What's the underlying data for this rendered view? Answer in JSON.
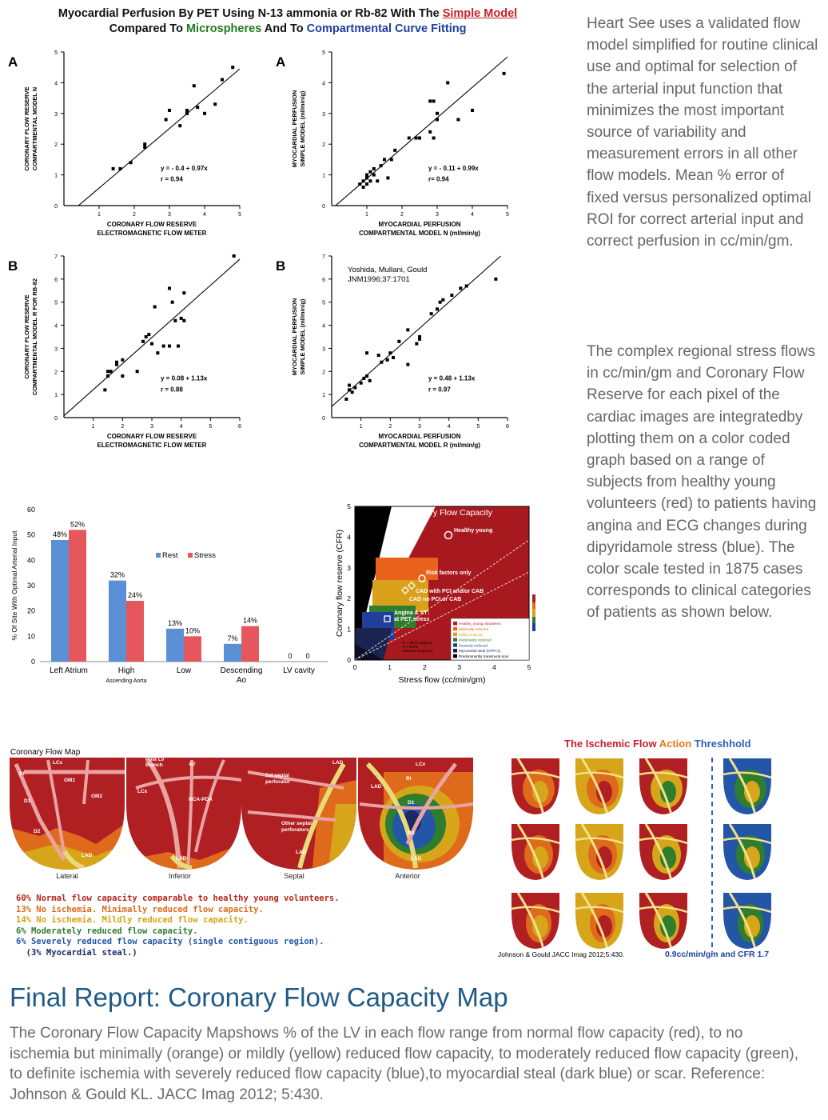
{
  "figure": {
    "title_pre": "Myocardial Perfusion By PET Using N-13 ammonia or Rb-82 With The ",
    "title_simple": "Simple Model",
    "title_pre2": "Compared To ",
    "title_micro": "Microspheres",
    "title_mid": " And To ",
    "title_comp": "Compartmental Curve Fitting"
  },
  "side_text": {
    "para1": "Heart See uses a validated flow model simplified for routine clinical use and optimal for selection of the arterial input function that minimizes the most important source of variability and measurement errors in all other flow models. Mean % error of fixed versus personalized optimal ROI for correct arterial input and correct perfusion in cc/min/gm.",
    "para2": "The complex regional stress flows in cc/min/gm and Coronary Flow Reserve for each pixel of the cardiac images are integratedby plotting them on a color coded graph based on a range of subjects from healthy young volunteers (red) to patients having angina and ECG changes during dipyridamole stress (blue).  The color scale tested in 1875 cases corresponds to clinical categories of patients as shown below."
  },
  "chart_data": [
    {
      "type": "scatter",
      "panel_label": "A",
      "xlabel": "CORONARY FLOW RESERVE\nELECTROMAGNETIC FLOW METER",
      "ylabel": "CORONARY FLOW RESERVE\nCOMPARTMENTAL MODEL N",
      "xlim": [
        0,
        5
      ],
      "ylim": [
        0,
        5
      ],
      "xticks": [
        1,
        2,
        3,
        4,
        5
      ],
      "yticks": [
        1,
        2,
        3,
        4,
        5
      ],
      "equation": "y =  - 0.4 + 0.97x",
      "r": "r = 0.94",
      "fit": {
        "intercept": -0.4,
        "slope": 0.97
      },
      "points": [
        [
          1.4,
          1.2
        ],
        [
          1.6,
          1.2
        ],
        [
          1.9,
          1.4
        ],
        [
          2.3,
          1.9
        ],
        [
          2.3,
          2.0
        ],
        [
          2.9,
          2.8
        ],
        [
          3.0,
          3.1
        ],
        [
          3.3,
          2.6
        ],
        [
          3.5,
          3.1
        ],
        [
          3.5,
          3.0
        ],
        [
          3.7,
          3.9
        ],
        [
          3.8,
          3.2
        ],
        [
          4.0,
          3.0
        ],
        [
          4.3,
          3.3
        ],
        [
          4.5,
          4.1
        ],
        [
          4.8,
          4.5
        ]
      ]
    },
    {
      "type": "scatter",
      "panel_label": "A",
      "xlabel": "MYOCARDIAL PERFUSION\nCOMPARTMENTAL MODEL N  (ml/min/g)",
      "ylabel": "MYOCARDIAL PERFUSION\nSIMPLE MODEL  (ml/min/g)",
      "xlim": [
        0,
        5
      ],
      "ylim": [
        0,
        5
      ],
      "xticks": [
        1,
        2,
        3,
        4,
        5
      ],
      "yticks": [
        1,
        2,
        3,
        4,
        5
      ],
      "equation": "y =  - 0.11 + 0.99x",
      "r": "r= 0.94",
      "fit": {
        "intercept": -0.11,
        "slope": 0.99
      },
      "points": [
        [
          0.8,
          0.7
        ],
        [
          0.9,
          0.6
        ],
        [
          0.9,
          0.8
        ],
        [
          1.0,
          0.7
        ],
        [
          1.0,
          0.9
        ],
        [
          1.0,
          1.0
        ],
        [
          1.1,
          0.8
        ],
        [
          1.1,
          1.1
        ],
        [
          1.2,
          1.0
        ],
        [
          1.2,
          1.2
        ],
        [
          1.3,
          0.8
        ],
        [
          1.4,
          1.3
        ],
        [
          1.5,
          1.5
        ],
        [
          1.6,
          0.9
        ],
        [
          1.7,
          1.5
        ],
        [
          1.8,
          1.8
        ],
        [
          2.2,
          2.2
        ],
        [
          2.4,
          2.2
        ],
        [
          2.5,
          2.2
        ],
        [
          2.8,
          2.4
        ],
        [
          2.8,
          3.4
        ],
        [
          2.9,
          2.2
        ],
        [
          2.9,
          3.4
        ],
        [
          3.0,
          2.8
        ],
        [
          3.0,
          3.0
        ],
        [
          3.3,
          4.0
        ],
        [
          3.6,
          2.8
        ],
        [
          4.0,
          3.1
        ],
        [
          4.9,
          4.3
        ]
      ]
    },
    {
      "type": "scatter",
      "panel_label": "B",
      "xlabel": "CORONARY FLOW RESERVE\nELECTROMAGNETIC FLOW METER",
      "ylabel": "CORONARY FLOW RESERVE\nCOMPARTMENTAL MODEL R FOR RB-82",
      "xlim": [
        0,
        6
      ],
      "ylim": [
        0,
        7
      ],
      "xticks": [
        1,
        2,
        3,
        4,
        5,
        6
      ],
      "yticks": [
        1,
        2,
        3,
        4,
        5,
        6,
        7
      ],
      "equation": "y = 0.08 + 1.13x",
      "r": "r = 0.88",
      "fit": {
        "intercept": 0.08,
        "slope": 1.13
      },
      "points": [
        [
          1.4,
          1.2
        ],
        [
          1.5,
          1.8
        ],
        [
          1.5,
          2.0
        ],
        [
          1.6,
          2.0
        ],
        [
          1.8,
          2.3
        ],
        [
          1.8,
          2.4
        ],
        [
          2.0,
          2.5
        ],
        [
          2.0,
          1.8
        ],
        [
          2.5,
          2.0
        ],
        [
          2.7,
          3.3
        ],
        [
          2.8,
          3.5
        ],
        [
          2.9,
          3.6
        ],
        [
          3.0,
          3.2
        ],
        [
          3.1,
          4.8
        ],
        [
          3.2,
          2.8
        ],
        [
          3.4,
          3.1
        ],
        [
          3.6,
          5.6
        ],
        [
          3.6,
          3.1
        ],
        [
          3.7,
          5.0
        ],
        [
          3.8,
          4.2
        ],
        [
          3.9,
          3.1
        ],
        [
          4.0,
          4.3
        ],
        [
          4.1,
          5.4
        ],
        [
          4.1,
          4.2
        ],
        [
          5.8,
          7.0
        ]
      ]
    },
    {
      "type": "scatter",
      "panel_label": "B",
      "annotation": "Yoshida, Mullani, Gould\nJNM1996;37:1701",
      "xlabel": "MYOCARDIAL PERFUSION\nCOMPARTMENTAL MODEL R  (ml/min/g)",
      "ylabel": "MYOCARDIAL PERFUSION\nSIMPLE MODEL  (ml/min/g)",
      "xlim": [
        0,
        6
      ],
      "ylim": [
        0,
        7
      ],
      "xticks": [
        1,
        2,
        3,
        4,
        5,
        6
      ],
      "yticks": [
        1,
        2,
        3,
        4,
        5,
        6,
        7
      ],
      "equation": "y = 0.48 + 1.13x",
      "r": "r = 0.97",
      "fit": {
        "intercept": 0.48,
        "slope": 1.13
      },
      "points": [
        [
          0.5,
          0.8
        ],
        [
          0.6,
          1.2
        ],
        [
          0.6,
          1.4
        ],
        [
          0.7,
          1.1
        ],
        [
          0.8,
          1.3
        ],
        [
          1.0,
          1.5
        ],
        [
          1.1,
          1.7
        ],
        [
          1.2,
          1.8
        ],
        [
          1.2,
          2.8
        ],
        [
          1.3,
          1.6
        ],
        [
          1.6,
          2.7
        ],
        [
          1.7,
          2.4
        ],
        [
          1.9,
          2.5
        ],
        [
          2.0,
          2.8
        ],
        [
          2.1,
          2.6
        ],
        [
          2.3,
          3.3
        ],
        [
          2.6,
          3.8
        ],
        [
          2.6,
          2.3
        ],
        [
          2.9,
          3.2
        ],
        [
          3.0,
          3.4
        ],
        [
          3.0,
          3.5
        ],
        [
          3.4,
          4.5
        ],
        [
          3.6,
          4.7
        ],
        [
          3.7,
          5.0
        ],
        [
          3.8,
          5.1
        ],
        [
          4.1,
          5.3
        ],
        [
          4.4,
          5.6
        ],
        [
          4.6,
          5.7
        ],
        [
          5.6,
          6.0
        ]
      ]
    },
    {
      "type": "bar",
      "ylabel": "% Of Site With Optimal Arterial Input",
      "ylim": [
        0,
        60
      ],
      "yticks": [
        0,
        10,
        20,
        30,
        40,
        50,
        60
      ],
      "categories": [
        "Left Atrium",
        "High",
        "Low",
        "Descending",
        "LV cavity"
      ],
      "category_sublabels": [
        "",
        "Ascending Aorta",
        "",
        "Ao",
        ""
      ],
      "series": [
        {
          "name": "Rest",
          "color": "#5b8fd6",
          "values": [
            48,
            32,
            13,
            7,
            0
          ]
        },
        {
          "name": "Stress",
          "color": "#e5575c",
          "values": [
            52,
            24,
            10,
            14,
            0
          ]
        }
      ],
      "value_labels": [
        [
          "48%",
          "32%",
          "13%",
          "7%",
          "0"
        ],
        [
          "52%",
          "24%",
          "10%",
          "14%",
          "0"
        ]
      ],
      "legend_position": "top-right"
    },
    {
      "type": "area",
      "title": "Coronary Flow Capacity",
      "xlabel": "Stress flow (cc/min/gm)",
      "ylabel": "Coronary flow reserve (CFR)",
      "xlim": [
        0,
        5
      ],
      "ylim": [
        0,
        5
      ],
      "xticks": [
        0,
        1,
        2,
        3,
        4,
        5
      ],
      "yticks": [
        0,
        1,
        2,
        3,
        4,
        5
      ],
      "annotations": [
        "Healthy young",
        "Risk factors only",
        "CAD with PCI and/or CAB",
        "CAD no PCI or CAB",
        "Angina & ST↓",
        "at PET stress"
      ],
      "stats": [
        "N = 1875 subjects",
        "P < 0.001",
        "between all groups"
      ],
      "legend": [
        "Healthy, young volunteers",
        "Minimally reduced",
        "Mildly reduced",
        "Moderately reduced",
        "Severely reduced",
        "Myocardial steal (CFR<1)",
        "Predominantly transmural scar"
      ],
      "legend_colors": [
        "#b51c22",
        "#e8641c",
        "#d9a21a",
        "#2f7d2e",
        "#1f3f9a",
        "#151a5a",
        "#000000"
      ]
    }
  ],
  "cfc_map": {
    "title": "Coronary Flow Map",
    "views": [
      "Lateral",
      "Inferior",
      "Septal",
      "Anterior"
    ],
    "vessel_labels": {
      "lateral": [
        "RI",
        "LCx",
        "OM1",
        "OM2",
        "D1",
        "D2",
        "LAD"
      ],
      "inferior": [
        "Post LV",
        "branch",
        "AV",
        "LCx",
        "RCA-PDA",
        "LAD"
      ],
      "septal": [
        "1st septal",
        "perforator",
        "Other septal",
        "perforators",
        "LAD"
      ],
      "anterior": [
        "LAD",
        "LCx",
        "RI",
        "LAD",
        "D1",
        "D2",
        "LAD"
      ]
    },
    "summary": [
      {
        "text": "60% Normal flow capacity comparable to healthy young volunteers.",
        "color": "#b5251c"
      },
      {
        "text": "13% No ischemia. Minimally reduced flow capacity.",
        "color": "#e06a1b"
      },
      {
        "text": "14% No ischemia. Mildly reduced flow capacity.",
        "color": "#d8a219"
      },
      {
        "text": "6% Moderately reduced flow capacity.",
        "color": "#2e7d2e"
      },
      {
        "text": "6% Severely reduced flow capacity (single contiguous region).",
        "color": "#2456a8"
      },
      {
        "text": "  (3% Myocardial steal.)",
        "color": "#1b2a66"
      }
    ]
  },
  "threshold_figure": {
    "title_part1": "The Ischemic Flow ",
    "title_part2": "Action",
    "title_part3": " Threshhold",
    "citation": "Johnson & Gould JACC Imag 2012;5:430.",
    "threshold_label": "0.9cc/min/gm and CFR 1.7"
  },
  "final_report": {
    "title": "Final Report: Coronary Flow Capacity Map",
    "body": "The Coronary Flow Capacity Mapshows % of the LV in each flow range from normal flow capacity (red), to no ischemia but minimally (orange) or mildly (yellow) reduced flow capacity, to moderately reduced flow capacity (green), to definite ischemia with severely reduced flow capacity (blue),to myocardial steal (dark blue) or scar. Reference: Johnson & Gould KL. JACC Imag 2012; 5:430."
  }
}
